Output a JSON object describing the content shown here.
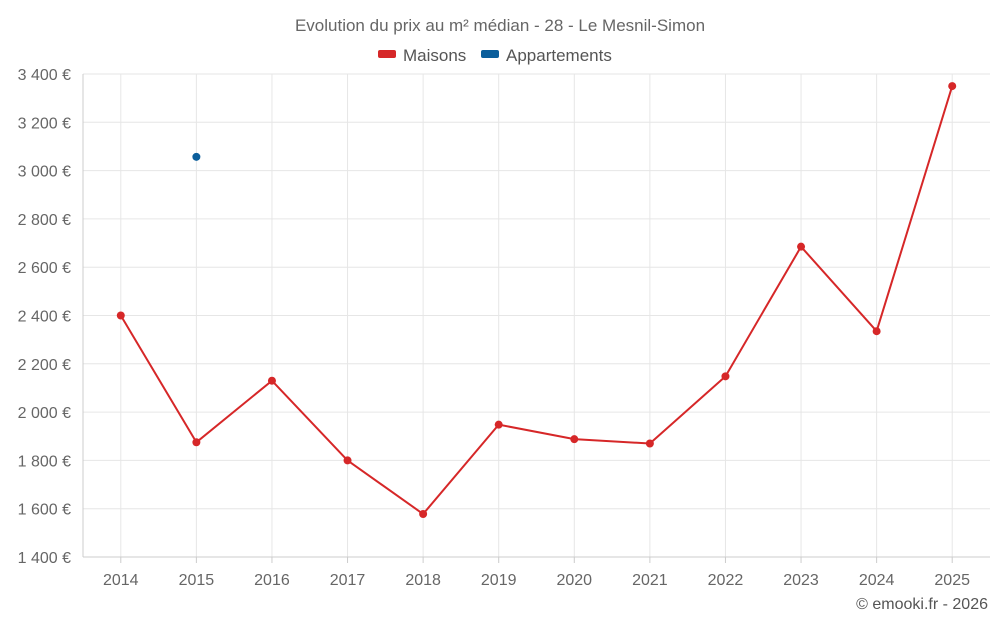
{
  "chart_data": {
    "type": "line",
    "title": "Evolution du prix au m² médian - 28 - Le Mesnil-Simon",
    "categories": [
      "2014",
      "2015",
      "2016",
      "2017",
      "2018",
      "2019",
      "2020",
      "2021",
      "2022",
      "2023",
      "2024",
      "2025"
    ],
    "y_ticks": [
      "1 400 €",
      "1 600 €",
      "1 800 €",
      "2 000 €",
      "2 200 €",
      "2 400 €",
      "2 600 €",
      "2 800 €",
      "3 000 €",
      "3 200 €",
      "3 400 €"
    ],
    "ylim": [
      1400,
      3400
    ],
    "grid": true,
    "legend_position": "top-center",
    "series": [
      {
        "name": "Maisons",
        "color": "#d62728",
        "values": [
          2400,
          1875,
          2130,
          1800,
          1578,
          1948,
          1888,
          1870,
          2148,
          2685,
          2335,
          3350
        ]
      },
      {
        "name": "Appartements",
        "color": "#0b5e9b",
        "values": [
          null,
          3057,
          null,
          null,
          null,
          null,
          null,
          null,
          null,
          null,
          null,
          null
        ]
      }
    ]
  },
  "credit": "© emooki.fr - 2026"
}
